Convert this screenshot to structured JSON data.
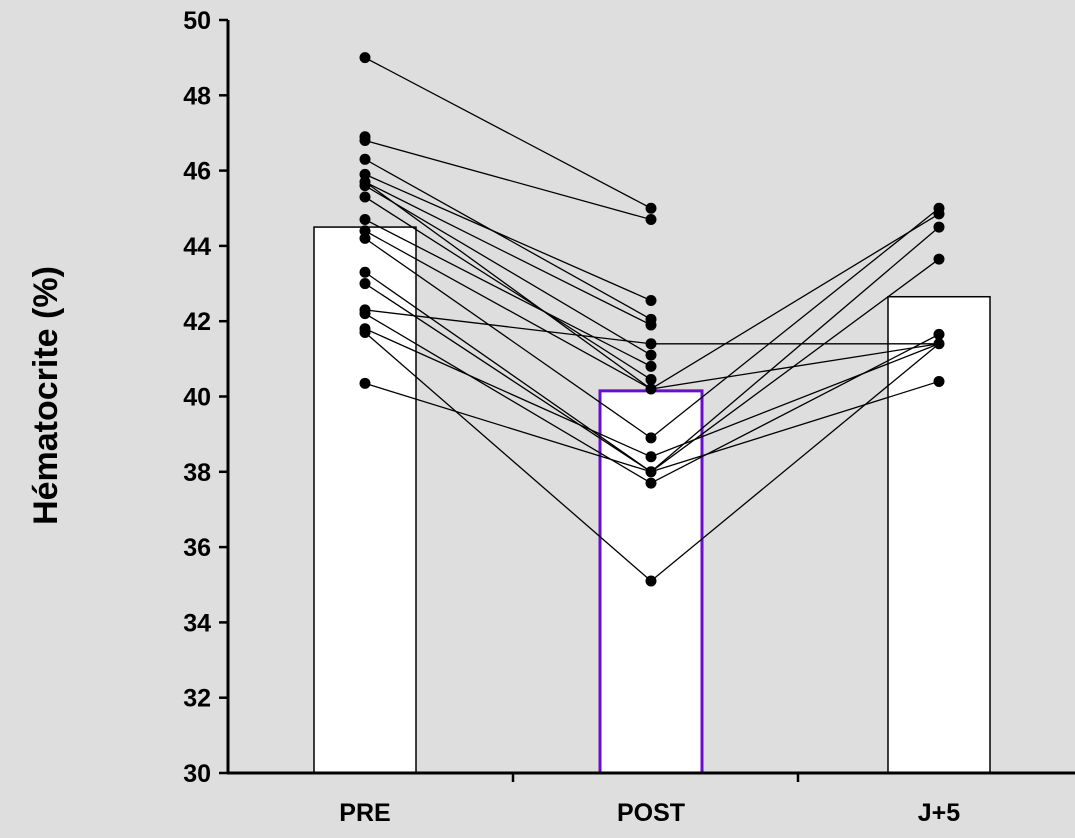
{
  "chart_data": {
    "type": "bar",
    "title": "",
    "xlabel": "",
    "ylabel": "Hématocrite (%)",
    "ylim": [
      30,
      50
    ],
    "y_ticks": [
      30,
      32,
      34,
      36,
      38,
      40,
      42,
      44,
      46,
      48,
      50
    ],
    "categories": [
      "PRE",
      "POST",
      "J+5"
    ],
    "values": [
      44.5,
      40.15,
      42.65
    ],
    "highlight_category": "POST",
    "grid": false,
    "legend": "none",
    "colors": {
      "background": "#dedede",
      "bar_fill": "#ffffff",
      "bar_stroke": "#000000",
      "highlight_stroke": "#6a0dcc",
      "point": "#000000",
      "line": "#000000"
    },
    "individual_points": {
      "PRE": [
        49.0,
        46.9,
        46.8,
        46.3,
        45.9,
        45.7,
        45.6,
        45.3,
        44.7,
        44.4,
        44.2,
        43.3,
        43.0,
        42.3,
        42.2,
        41.8,
        41.7,
        40.35
      ],
      "POST": [
        45.0,
        44.7,
        42.55,
        42.05,
        41.9,
        41.4,
        41.1,
        40.8,
        40.45,
        40.2,
        38.9,
        38.4,
        38.0,
        37.7,
        35.1
      ],
      "J+5": [
        45.0,
        44.85,
        44.5,
        43.65,
        41.65,
        41.4,
        40.4
      ]
    },
    "subject_lines": [
      [
        49.0,
        45.0,
        null
      ],
      [
        46.8,
        44.7,
        null
      ],
      [
        46.3,
        42.05,
        null
      ],
      [
        45.9,
        42.55,
        null
      ],
      [
        45.7,
        41.9,
        null
      ],
      [
        45.6,
        41.1,
        null
      ],
      [
        45.3,
        40.45,
        null
      ],
      [
        45.7,
        40.2,
        41.4
      ],
      [
        44.7,
        40.8,
        null
      ],
      [
        44.2,
        38.9,
        45.0
      ],
      [
        44.4,
        40.2,
        44.85
      ],
      [
        43.3,
        38.0,
        44.5
      ],
      [
        43.0,
        38.0,
        43.65
      ],
      [
        42.3,
        41.4,
        41.4
      ],
      [
        42.2,
        37.7,
        41.65
      ],
      [
        41.8,
        38.4,
        41.4
      ],
      [
        41.7,
        35.1,
        41.4
      ],
      [
        40.35,
        38.0,
        40.4
      ]
    ]
  }
}
